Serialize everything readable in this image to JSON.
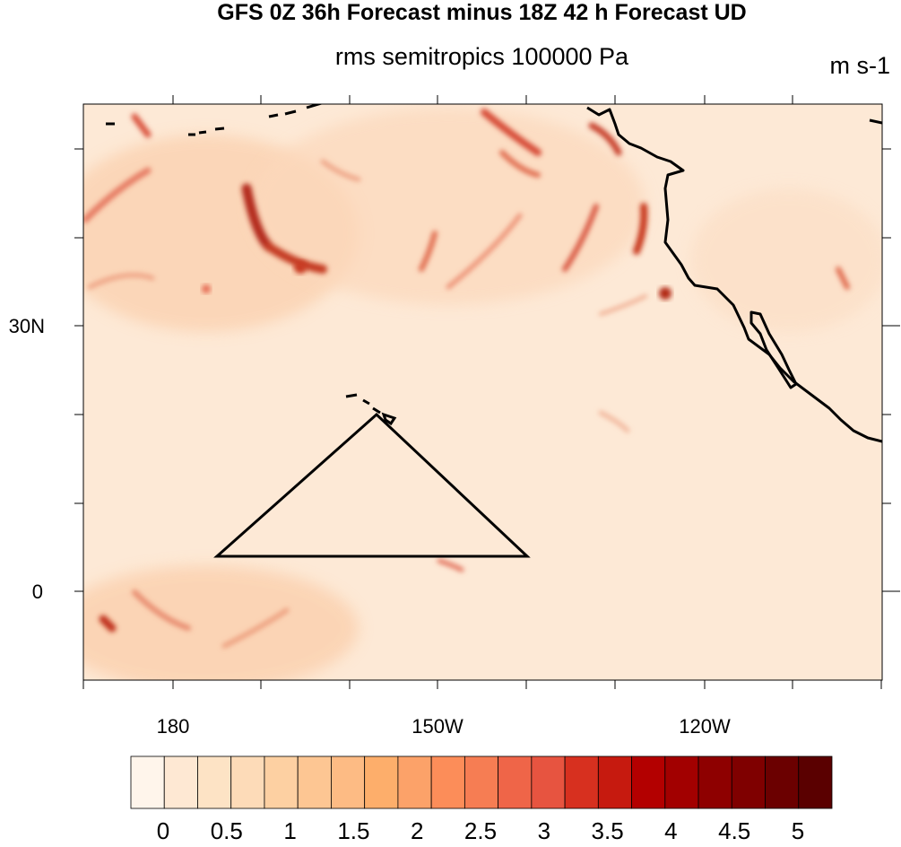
{
  "title": "GFS 0Z 36h Forecast minus 18Z 42 h Forecast UD",
  "subtitle": "rms semitropics 100000 Pa",
  "units": "m s-1",
  "lat_labels": [
    "30N",
    "0"
  ],
  "lon_labels": [
    "180",
    "150W",
    "120W"
  ],
  "colorbar": {
    "labels": [
      "0",
      "0.5",
      "1",
      "1.5",
      "2",
      "2.5",
      "3",
      "3.5",
      "4",
      "4.5",
      "5"
    ],
    "colors": [
      "#fff5eb",
      "#fee8d3",
      "#fde3c5",
      "#fddbb8",
      "#fdd0a2",
      "#fdc693",
      "#fdbb84",
      "#fdae6b",
      "#fca269",
      "#fc8d59",
      "#f67d53",
      "#ef6548",
      "#e75440",
      "#d7301f",
      "#c61a0f",
      "#b30000",
      "#a20000",
      "#8e0000",
      "#7f0000",
      "#6b0000",
      "#5a0000"
    ]
  },
  "map": {
    "background": "#fde7d3",
    "region": "North Pacific 10S-55N, 170E-100W",
    "overlay": "triangle outline"
  }
}
